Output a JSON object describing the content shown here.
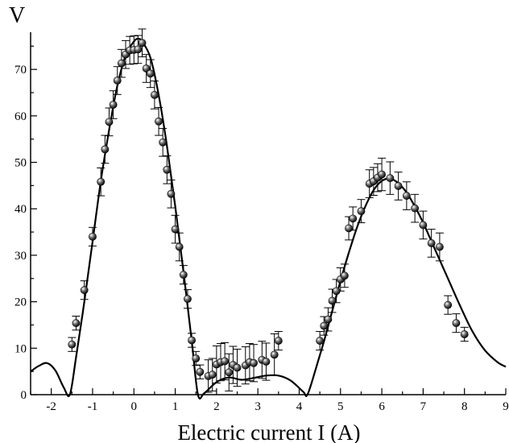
{
  "chart_data": {
    "type": "scatter",
    "title": "",
    "xlabel": "Electric current I (A)",
    "ylabel": "V",
    "xlim": [
      -2.5,
      9
    ],
    "ylim": [
      0,
      78
    ],
    "xticks": [
      -2,
      -1,
      0,
      1,
      2,
      3,
      4,
      5,
      6,
      7,
      8,
      9
    ],
    "yticks": [
      0,
      10,
      20,
      30,
      40,
      50,
      60,
      70
    ],
    "x_minor_step": 0.5,
    "y_minor_step": 5,
    "grid": false,
    "legend": "none",
    "series": [
      {
        "kind": "points_with_error_bars",
        "x": [
          -1.5,
          -1.4,
          -1.2,
          -1.0,
          -0.8,
          -0.7,
          -0.6,
          -0.5,
          -0.4,
          -0.3,
          -0.2,
          -0.1,
          0.0,
          0.1,
          0.2,
          0.3,
          0.4,
          0.5,
          0.6,
          0.7,
          0.8,
          0.9,
          1.0,
          1.1,
          1.2,
          1.3,
          1.4,
          1.5,
          1.6,
          1.8,
          1.9,
          2.0,
          2.1,
          2.2,
          2.3,
          2.4,
          2.5,
          2.7,
          2.8,
          2.9,
          3.1,
          3.2,
          3.4,
          3.5,
          4.5,
          4.6,
          4.7,
          4.8,
          4.9,
          5.0,
          5.1,
          5.2,
          5.3,
          5.5,
          5.7,
          5.8,
          5.9,
          6.0,
          6.2,
          6.4,
          6.6,
          6.8,
          7.0,
          7.2,
          7.4,
          7.6,
          7.8,
          8.0
        ],
        "y": [
          10.8,
          15.4,
          22.5,
          34.0,
          45.8,
          52.8,
          58.7,
          62.4,
          67.6,
          71.3,
          73.2,
          74.1,
          74.2,
          74.3,
          75.7,
          70.2,
          69.1,
          64.5,
          58.8,
          54.3,
          48.4,
          43.2,
          35.6,
          31.8,
          25.8,
          20.6,
          11.7,
          7.8,
          4.9,
          4.0,
          4.3,
          6.5,
          7.0,
          7.2,
          4.8,
          6.4,
          5.8,
          6.3,
          7.0,
          6.8,
          7.5,
          7.1,
          8.6,
          11.6,
          11.6,
          14.8,
          16.2,
          20.2,
          22.3,
          24.8,
          25.6,
          35.8,
          37.9,
          39.5,
          45.4,
          45.9,
          46.7,
          47.4,
          46.6,
          44.9,
          42.8,
          40.1,
          36.5,
          32.6,
          31.8,
          19.3,
          15.4,
          13.0
        ],
        "err": [
          1.5,
          1.5,
          2.0,
          2.0,
          3.0,
          3.0,
          3.0,
          3.0,
          3.0,
          3.0,
          3.0,
          3.0,
          3.0,
          3.0,
          3.0,
          3.0,
          3.0,
          3.0,
          3.0,
          3.0,
          3.0,
          3.0,
          3.0,
          3.0,
          2.0,
          2.0,
          1.5,
          1.5,
          1.5,
          3.5,
          3.5,
          4.0,
          4.0,
          4.0,
          4.0,
          4.0,
          4.0,
          4.0,
          4.0,
          4.0,
          4.0,
          4.0,
          4.5,
          2.0,
          2.0,
          2.0,
          2.5,
          2.5,
          2.5,
          2.5,
          2.5,
          2.5,
          2.5,
          2.5,
          3.0,
          3.0,
          3.0,
          3.5,
          3.5,
          3.0,
          3.0,
          3.0,
          3.0,
          3.0,
          3.0,
          2.0,
          2.0,
          1.5
        ]
      },
      {
        "kind": "fit_line",
        "x": [
          -2.5,
          -2.3,
          -2.1,
          -1.9,
          -1.7,
          -1.55,
          -1.4,
          -1.2,
          -1.0,
          -0.8,
          -0.6,
          -0.4,
          -0.2,
          0.0,
          0.1,
          0.2,
          0.4,
          0.6,
          0.8,
          1.0,
          1.2,
          1.4,
          1.55,
          1.7,
          2.0,
          2.3,
          2.6,
          2.9,
          3.2,
          3.5,
          3.8,
          4.1,
          4.2,
          4.4,
          4.6,
          4.8,
          5.0,
          5.2,
          5.4,
          5.6,
          5.8,
          6.0,
          6.2,
          6.4,
          6.6,
          6.8,
          7.0,
          7.3,
          7.6,
          7.9,
          8.2,
          8.5,
          8.8,
          9.0
        ],
        "y": [
          5.0,
          6.2,
          6.8,
          5.2,
          1.6,
          0.0,
          8.0,
          20.0,
          33.0,
          46.0,
          57.0,
          66.5,
          73.0,
          76.0,
          76.6,
          76.0,
          72.5,
          64.5,
          53.5,
          40.5,
          26.5,
          11.5,
          0.0,
          0.3,
          2.7,
          3.7,
          3.2,
          3.6,
          4.1,
          4.1,
          3.0,
          0.6,
          0.0,
          5.5,
          11.5,
          18.0,
          24.5,
          30.5,
          36.0,
          40.5,
          44.0,
          46.0,
          46.5,
          45.5,
          43.5,
          40.5,
          37.0,
          31.0,
          25.0,
          19.0,
          13.5,
          9.5,
          7.0,
          6.0
        ]
      }
    ]
  }
}
